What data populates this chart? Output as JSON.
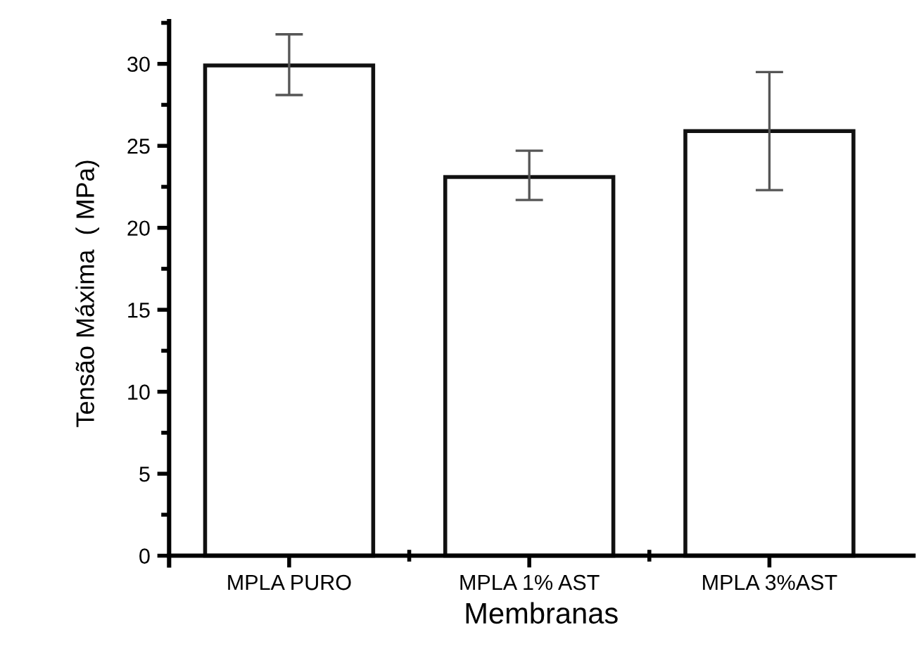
{
  "chart_data": {
    "type": "bar",
    "xlabel": "Membranas",
    "ylabel": "Tensão Máxima  ( MPa)",
    "categories": [
      "MPLA PURO",
      "MPLA 1% AST",
      "MPLA 3%AST"
    ],
    "values": [
      29.9,
      23.1,
      25.9
    ],
    "errors": [
      [
        28.1,
        31.8
      ],
      [
        21.7,
        24.7
      ],
      [
        22.3,
        29.5
      ]
    ],
    "color": "#ffffff",
    "ylim": [
      -0.6,
      32.6
    ],
    "yticks": [
      0,
      5,
      10,
      15,
      20,
      25,
      30
    ],
    "grid": false
  }
}
